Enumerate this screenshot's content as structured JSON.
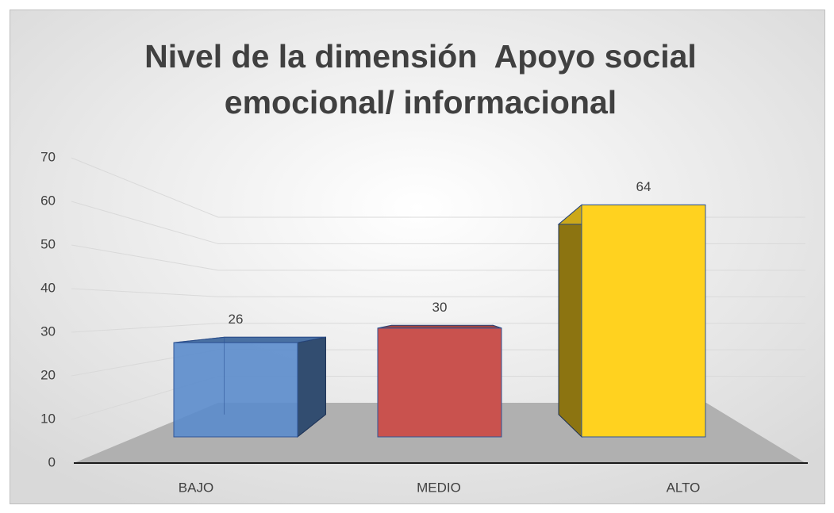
{
  "chart_data": {
    "type": "bar3d",
    "title": "Nivel de la dimensión  Apoyo social emocional/ informacional",
    "categories": [
      "BAJO",
      "MEDIO",
      "ALTO"
    ],
    "values": [
      26,
      30,
      64
    ],
    "colors": [
      "#5b8ccc",
      "#c9524e",
      "#ffd21f"
    ],
    "ylim": [
      0,
      70
    ],
    "yticks": [
      0,
      10,
      20,
      30,
      40,
      50,
      60,
      70
    ],
    "grid": true
  }
}
